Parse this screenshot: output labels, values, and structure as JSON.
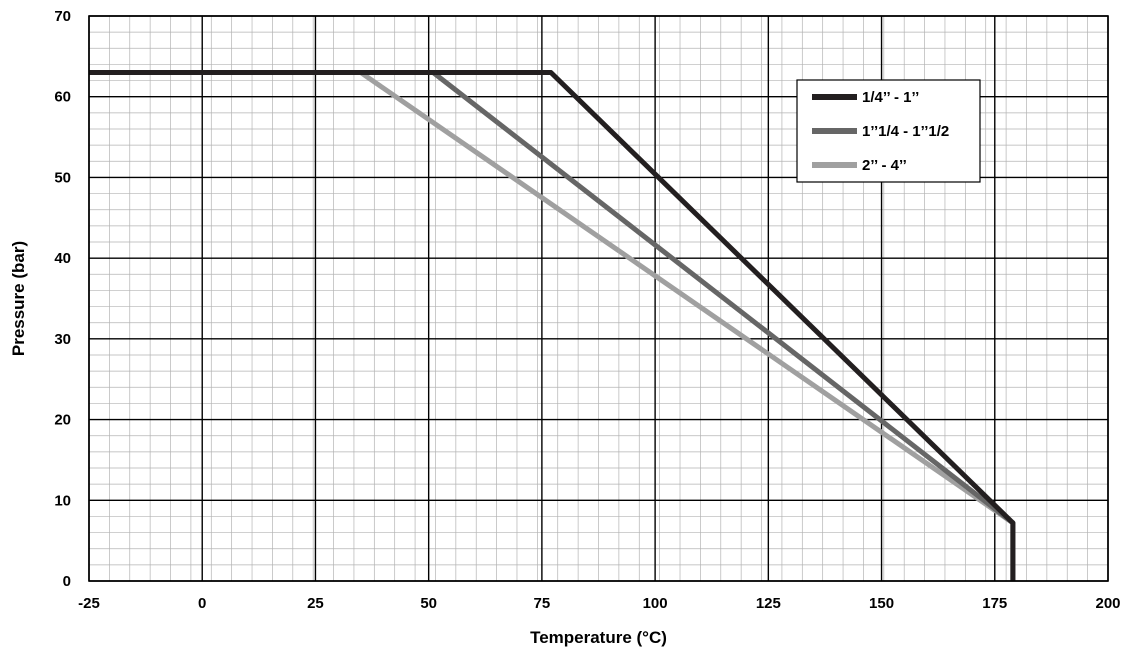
{
  "chart_data": {
    "type": "line",
    "title": "",
    "xlabel": "Temperature (°C)",
    "ylabel": "Pressure (bar)",
    "xlim": [
      -25,
      200
    ],
    "ylim": [
      0,
      70
    ],
    "x_ticks": [
      -25,
      0,
      25,
      50,
      75,
      100,
      125,
      150,
      175,
      200
    ],
    "y_ticks": [
      0,
      10,
      20,
      30,
      40,
      50,
      60,
      70
    ],
    "x_tick_labels": [
      "-25",
      "0",
      "25",
      "50",
      "75",
      "100",
      "125",
      "150",
      "175",
      "200"
    ],
    "y_tick_labels": [
      "0",
      "10",
      "20",
      "30",
      "40",
      "50",
      "60",
      "70"
    ],
    "grid": true,
    "legend_position": "top-right",
    "series": [
      {
        "name": "1/4’’ - 1’’",
        "color": "#231f20",
        "points": [
          [
            -25,
            63
          ],
          [
            77,
            63
          ],
          [
            179,
            7.2
          ],
          [
            179,
            0
          ]
        ]
      },
      {
        "name": "1’’1/4 - 1’’1/2",
        "color": "#666666",
        "points": [
          [
            -25,
            63
          ],
          [
            51,
            63
          ],
          [
            179,
            7.2
          ],
          [
            179,
            0
          ]
        ]
      },
      {
        "name": "2’’ - 4’’",
        "color": "#a0a0a0",
        "points": [
          [
            -25,
            63
          ],
          [
            35,
            63
          ],
          [
            179,
            7.2
          ],
          [
            179,
            0
          ]
        ]
      }
    ]
  }
}
